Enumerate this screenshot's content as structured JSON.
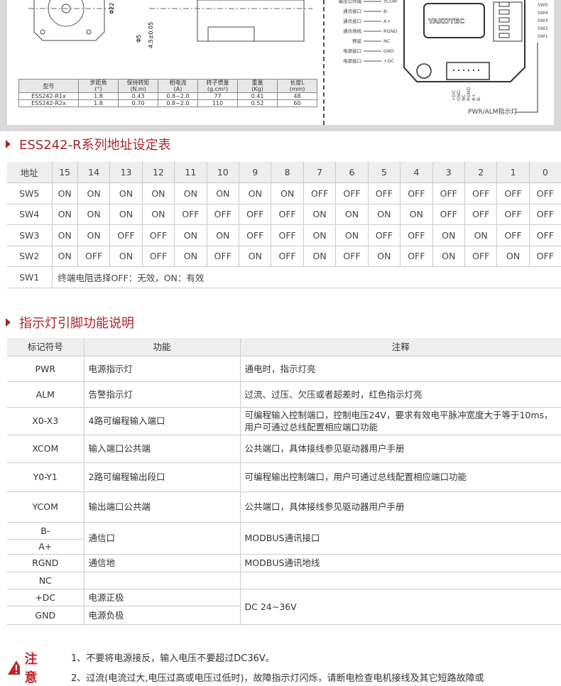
{
  "spec_table": {
    "headers": [
      [
        "型号",
        ""
      ],
      [
        "步距角",
        "(°)"
      ],
      [
        "保持转矩",
        "(N.m)"
      ],
      [
        "相电流",
        "(A)"
      ],
      [
        "转子惯量",
        "(g.cm²)"
      ],
      [
        "重量",
        "(Kg)"
      ],
      [
        "长度L",
        "(mm)"
      ]
    ],
    "rows": [
      [
        "ESS242-R1x",
        "1.8",
        "0.43",
        "0.8~2.0",
        "77",
        "0.41",
        "48"
      ],
      [
        "ESS242-R2x",
        "1.8",
        "0.70",
        "0.8~2.0",
        "110",
        "0.52",
        "60"
      ]
    ]
  },
  "drawing": {
    "dims": [
      "Φ22",
      "Φ5",
      "4.5±0.05"
    ],
    "brand": "YAKOTEC",
    "pin_labels": [
      [
        "输出公共端",
        "YCOM"
      ],
      [
        "通讯接口",
        "B-"
      ],
      [
        "通讯接口",
        "A+"
      ],
      [
        "通讯地线",
        "RGND"
      ],
      [
        "预留",
        "NC"
      ],
      [
        "电源接口",
        "GND"
      ],
      [
        "电源接口",
        "+DC"
      ]
    ],
    "switches": [
      "SW5",
      "SW4",
      "SW3",
      "SW2",
      "SW1"
    ],
    "connector_pins": [
      "+DC",
      "GND",
      "NC",
      "RGND",
      "A+",
      "B-"
    ],
    "led_label": "PWR/ALM指示灯"
  },
  "addr_section": {
    "title": "ESS242-R系列地址设定表",
    "header": [
      "地址",
      "15",
      "14",
      "13",
      "12",
      "11",
      "10",
      "9",
      "8",
      "7",
      "6",
      "5",
      "4",
      "3",
      "2",
      "1",
      "0"
    ],
    "rows": [
      [
        "SW5",
        "ON",
        "ON",
        "ON",
        "ON",
        "ON",
        "ON",
        "ON",
        "ON",
        "OFF",
        "OFF",
        "OFF",
        "OFF",
        "OFF",
        "OFF",
        "OFF",
        "OFF"
      ],
      [
        "SW4",
        "ON",
        "ON",
        "ON",
        "ON",
        "OFF",
        "OFF",
        "OFF",
        "OFF",
        "ON",
        "ON",
        "ON",
        "ON",
        "OFF",
        "OFF",
        "OFF",
        "OFF"
      ],
      [
        "SW3",
        "ON",
        "ON",
        "OFF",
        "OFF",
        "ON",
        "ON",
        "OFF",
        "OFF",
        "ON",
        "ON",
        "OFF",
        "OFF",
        "ON",
        "ON",
        "OFF",
        "OFF"
      ],
      [
        "SW2",
        "ON",
        "OFF",
        "ON",
        "OFF",
        "ON",
        "OFF",
        "ON",
        "OFF",
        "ON",
        "OFF",
        "ON",
        "OFF",
        "ON",
        "OFF",
        "ON",
        "OFF"
      ]
    ],
    "sw1_label": "SW1",
    "sw1_text": "终端电阻选择OFF：无效，ON：有效"
  },
  "pin_section": {
    "title": "指示灯引脚功能说明",
    "headers": [
      "标记符号",
      "功能",
      "注释"
    ],
    "rows": [
      [
        "PWR",
        "电源指示灯",
        "通电时，指示灯亮"
      ],
      [
        "ALM",
        "告警指示灯",
        "过流、过压、欠压或者超差时，红色指示灯亮"
      ],
      [
        "X0-X3",
        "4路可编程输入端口",
        "可编程输入控制端口，控制电压24V，要求有效电平脉冲宽度大于等于10ms，用户可通过总线配置相应端口功能"
      ],
      [
        "XCOM",
        "输入端口公共端",
        "公共端口，具体接线参见驱动器用户手册"
      ],
      [
        "Y0-Y1",
        "2路可编程输出段口",
        "可编程输出控制端口，用户可通过总线配置相应端口功能"
      ],
      [
        "YCOM",
        "输出端口公共端",
        "公共端口，具体接线参见驱动器用户手册"
      ]
    ],
    "bus": {
      "b": "B-",
      "a": "A+",
      "func": "通信口",
      "note": "MODBUS通讯接口"
    },
    "rgnd": [
      "RGND",
      "通信地",
      "MODBUS通讯地线"
    ],
    "nc": "NC",
    "dc": [
      "+DC",
      "电源正极"
    ],
    "gnd": [
      "GND",
      "电源负极"
    ],
    "power_note": "DC 24~36V"
  },
  "notice": {
    "label": "注意",
    "lines": [
      "1、不要将电源接反，输入电压不要超过DC36V。",
      "2、过流(电流过大,电压过高或电压过低时)，故障指示灯闪烁，请断电检查电机接线及其它短路故障或"
    ]
  },
  "colors": {
    "accent": "#a8262a",
    "header_bg": "#eeeeee"
  }
}
